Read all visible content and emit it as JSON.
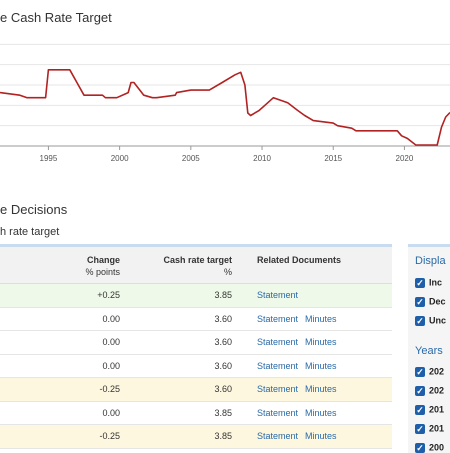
{
  "chart": {
    "title": "e Cash Rate Target",
    "x_ticks": [
      "1995",
      "2000",
      "2005",
      "2010",
      "2015",
      "2020"
    ]
  },
  "chart_data": {
    "type": "line",
    "title": "e Cash Rate Target",
    "xlim": [
      1991.6,
      2023.2
    ],
    "ylim": [
      0,
      12
    ],
    "xticks": [
      1995,
      2000,
      2005,
      2010,
      2015,
      2020
    ],
    "grid": true,
    "line_color": "#b22222",
    "series": [
      {
        "x": [
          1991.6,
          1993.0,
          1993.5,
          1994.8,
          1995.0,
          1996.5,
          1996.7,
          1997.0,
          1997.5,
          1998.8,
          1999.0,
          1999.8,
          2000.6,
          2000.8,
          2001.0,
          2001.7,
          2002.3,
          2002.6,
          2003.9,
          2004.0,
          2005.0,
          2006.3,
          2007.2,
          2008.1,
          2008.5,
          2008.8,
          2009.0,
          2009.2,
          2009.8,
          2010.2,
          2010.8,
          2011.8,
          2012.5,
          2013.0,
          2013.6,
          2015.0,
          2015.3,
          2016.3,
          2016.6,
          2019.5,
          2019.8,
          2020.2,
          2020.8,
          2022.3,
          2022.6,
          2022.9,
          2023.2
        ],
        "y": [
          5.25,
          5.0,
          4.75,
          4.75,
          7.5,
          7.5,
          7.0,
          6.25,
          5.0,
          5.0,
          4.75,
          4.75,
          5.25,
          6.25,
          6.25,
          5.0,
          4.75,
          4.75,
          5.0,
          5.25,
          5.5,
          5.5,
          6.25,
          7.0,
          7.25,
          6.0,
          3.25,
          3.0,
          3.5,
          4.0,
          4.75,
          4.25,
          3.5,
          3.0,
          2.5,
          2.25,
          2.0,
          1.75,
          1.5,
          1.5,
          1.0,
          0.75,
          0.1,
          0.1,
          1.85,
          2.85,
          3.3
        ]
      }
    ]
  },
  "decisions": {
    "title": "e Decisions",
    "subtitle": "h rate target"
  },
  "table": {
    "headers": {
      "change": "Change",
      "change_unit": "% points",
      "rate": "Cash rate target",
      "rate_unit": "%",
      "docs": "Related Documents"
    },
    "rows": [
      {
        "change": "+0.25",
        "rate": "3.85",
        "statement": "Statement",
        "minutes": ""
      },
      {
        "change": "0.00",
        "rate": "3.60",
        "statement": "Statement",
        "minutes": "Minutes"
      },
      {
        "change": "0.00",
        "rate": "3.60",
        "statement": "Statement",
        "minutes": "Minutes"
      },
      {
        "change": "0.00",
        "rate": "3.60",
        "statement": "Statement",
        "minutes": "Minutes"
      },
      {
        "change": "-0.25",
        "rate": "3.60",
        "statement": "Statement",
        "minutes": "Minutes"
      },
      {
        "change": "0.00",
        "rate": "3.85",
        "statement": "Statement",
        "minutes": "Minutes"
      },
      {
        "change": "-0.25",
        "rate": "3.85",
        "statement": "Statement",
        "minutes": "Minutes"
      }
    ]
  },
  "sidebar": {
    "display_heading": "Displa",
    "display_options": [
      "Inc",
      "Dec",
      "Unc"
    ],
    "years_heading": "Years",
    "year_options": [
      "202",
      "202",
      "201",
      "201",
      "200"
    ]
  },
  "colors": {
    "accent": "#2a6aa8",
    "checkbox": "#1f5ea8",
    "increase_row": "#eef9e9",
    "decrease_row": "#fdf7df"
  }
}
